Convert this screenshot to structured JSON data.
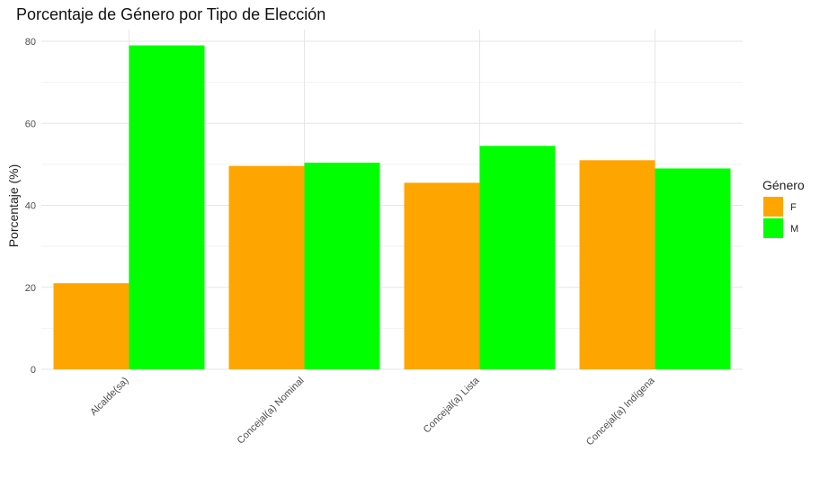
{
  "chart_data": {
    "type": "bar",
    "title": "Porcentaje de Género por Tipo de Elección",
    "xlabel": "",
    "ylabel": "Porcentaje (%)",
    "ylim": [
      0,
      82
    ],
    "yticks": [
      0,
      20,
      40,
      60,
      80
    ],
    "categories": [
      "Alcalde(sa)",
      "Concejal(a) Nominal",
      "Concejal(a) Lista",
      "Concejal(a) Indígena"
    ],
    "series": [
      {
        "name": "F",
        "color": "#FFA500",
        "values": [
          21.0,
          49.6,
          45.5,
          51.0
        ]
      },
      {
        "name": "M",
        "color": "#00FF00",
        "values": [
          79.0,
          50.4,
          54.5,
          49.0
        ]
      }
    ],
    "legend": {
      "title": "Género",
      "position": "right"
    },
    "grid": true
  }
}
